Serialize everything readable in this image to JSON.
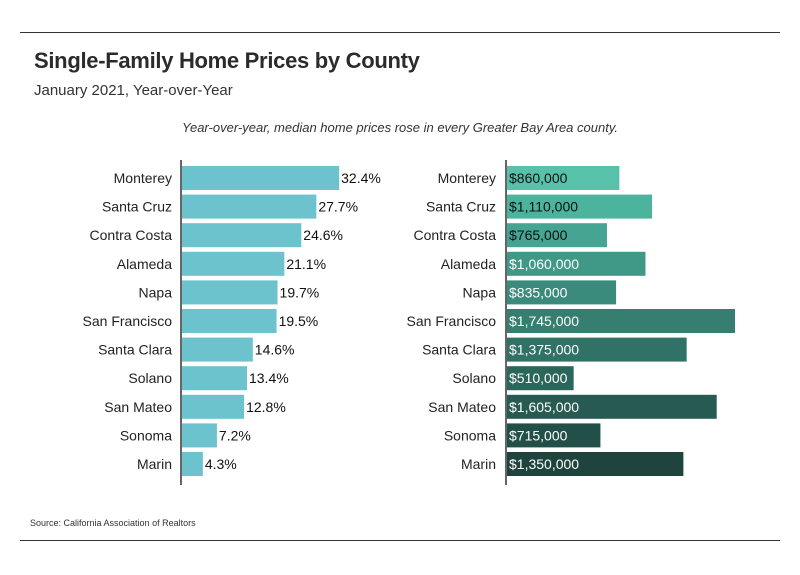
{
  "header": {
    "title": "Single-Family Home Prices by County",
    "subtitle": "January 2021, Year-over-Year",
    "note": "Year-over-year, median home prices rose in every Greater Bay Area county."
  },
  "footer": {
    "source": "Source:  California Association of Realtors"
  },
  "colors": {
    "pct_bar": "#6cc3ce",
    "price_bars": [
      "#57c1a9",
      "#4cb39d",
      "#45a592",
      "#409886",
      "#3a8b7b",
      "#357e70",
      "#307266",
      "#2b665b",
      "#275b51",
      "#224f47",
      "#1e443d"
    ]
  },
  "chart_data": [
    {
      "type": "bar",
      "orientation": "horizontal",
      "categories": [
        "Monterey",
        "Santa Cruz",
        "Contra Costa",
        "Alameda",
        "Napa",
        "San Francisco",
        "Santa Clara",
        "Solano",
        "San Mateo",
        "Sonoma",
        "Marin"
      ],
      "values": [
        32.4,
        27.7,
        24.6,
        21.1,
        19.7,
        19.5,
        14.6,
        13.4,
        12.8,
        7.2,
        4.3
      ],
      "labels": [
        "32.4%",
        "27.7%",
        "24.6%",
        "21.1%",
        "19.7%",
        "19.5%",
        "14.6%",
        "13.4%",
        "12.8%",
        "7.2%",
        "4.3%"
      ],
      "unit": "%"
    },
    {
      "type": "bar",
      "orientation": "horizontal",
      "categories": [
        "Monterey",
        "Santa Cruz",
        "Contra Costa",
        "Alameda",
        "Napa",
        "San Francisco",
        "Santa Clara",
        "Solano",
        "San Mateo",
        "Sonoma",
        "Marin"
      ],
      "values": [
        860000,
        1110000,
        765000,
        1060000,
        835000,
        1745000,
        1375000,
        510000,
        1605000,
        715000,
        1350000
      ],
      "labels": [
        "$860,000",
        "$1,110,000",
        "$765,000",
        "$1,060,000",
        "$835,000",
        "$1,745,000",
        "$1,375,000",
        "$510,000",
        "$1,605,000",
        "$715,000",
        "$1,350,000"
      ],
      "unit": "$"
    }
  ]
}
